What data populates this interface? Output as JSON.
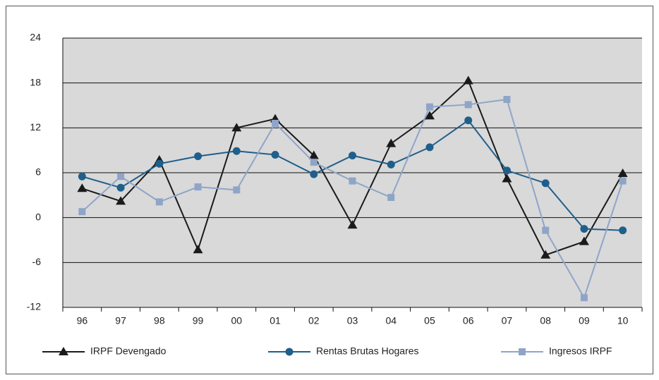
{
  "chart_data": {
    "type": "line",
    "categories": [
      "96",
      "97",
      "98",
      "99",
      "00",
      "01",
      "02",
      "03",
      "04",
      "05",
      "06",
      "07",
      "08",
      "09",
      "10"
    ],
    "series": [
      {
        "name": "IRPF Devengado",
        "color": "#1a1a1a",
        "marker": "triangle",
        "values": [
          3.9,
          2.2,
          7.7,
          -4.3,
          12.0,
          13.2,
          8.3,
          -1.0,
          9.9,
          13.6,
          18.3,
          5.2,
          -5.0,
          -3.2,
          5.9
        ]
      },
      {
        "name": "Rentas Brutas Hogares",
        "color": "#1f5f8b",
        "marker": "circle",
        "values": [
          5.5,
          4.0,
          7.2,
          8.2,
          8.9,
          8.4,
          5.8,
          8.3,
          7.1,
          9.4,
          13.0,
          6.3,
          4.6,
          -1.5,
          -1.7
        ]
      },
      {
        "name": "Ingresos IRPF",
        "color": "#8fa5c8",
        "marker": "square",
        "values": [
          0.8,
          5.5,
          2.1,
          4.1,
          3.7,
          12.6,
          7.4,
          4.9,
          2.7,
          14.8,
          15.1,
          15.8,
          -1.7,
          -10.7,
          4.9
        ]
      }
    ],
    "ylim": [
      -12,
      24
    ],
    "yticks": [
      -12,
      -6,
      0,
      6,
      12,
      18,
      24
    ],
    "grid": true
  }
}
